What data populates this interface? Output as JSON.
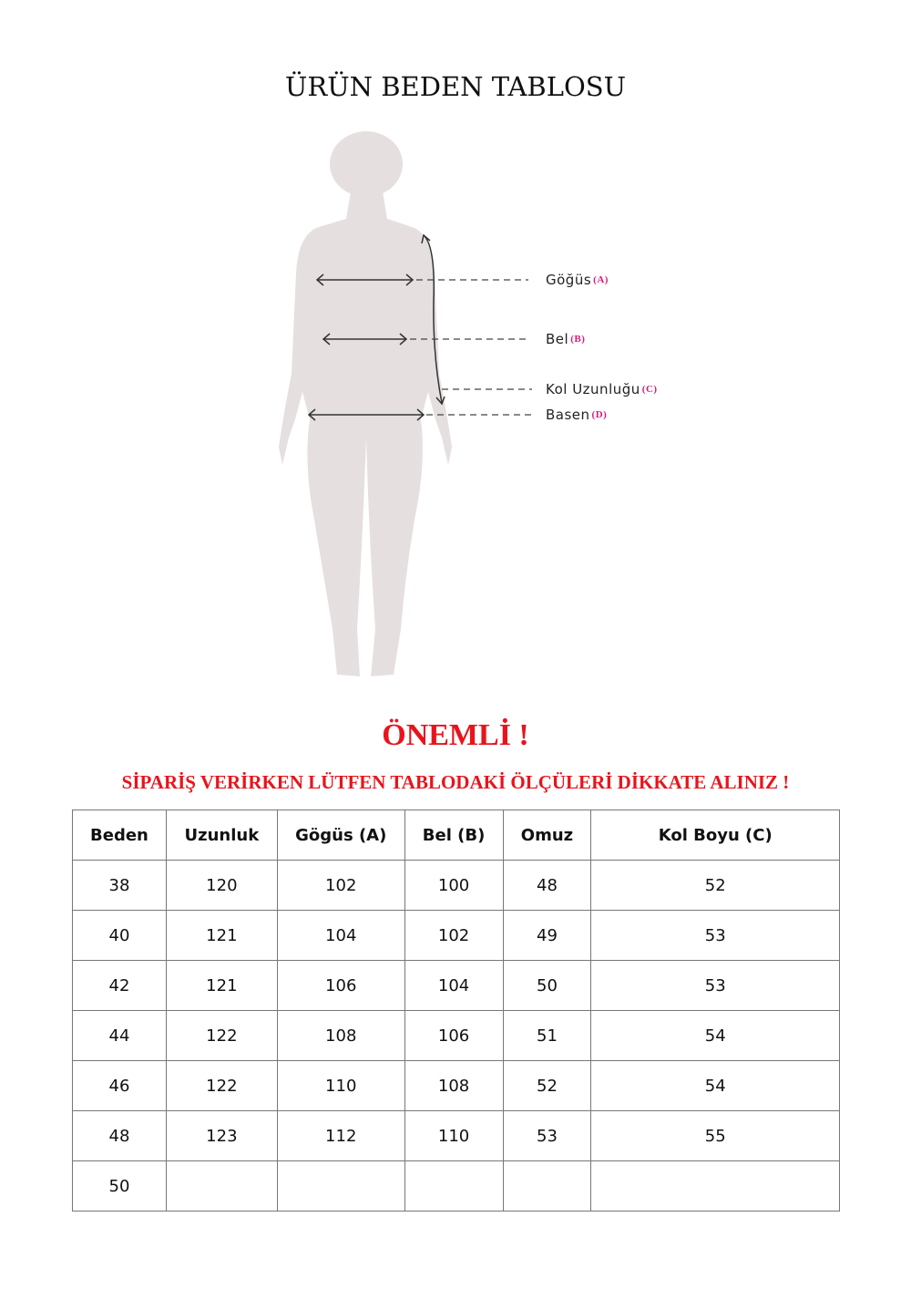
{
  "title": "ÜRÜN BEDEN TABLOSU",
  "figure": {
    "labels": [
      {
        "name": "Göğüs",
        "code": "(A)"
      },
      {
        "name": "Bel",
        "code": "(B)"
      },
      {
        "name": "Kol Uzunluğu",
        "code": "(C)"
      },
      {
        "name": "Basen",
        "code": "(D)"
      }
    ],
    "silhouette_color": "#e6dfdf",
    "code_color": "#d81b7a"
  },
  "important": "ÖNEMLİ !",
  "notice": "SİPARİŞ VERİRKEN LÜTFEN TABLODAKİ ÖLÇÜLERİ DİKKATE ALINIZ !",
  "accent_color": "#e8141c",
  "table": {
    "headers": [
      "Beden",
      "Uzunluk",
      "Gögüs (A)",
      "Bel (B)",
      "Omuz",
      "Kol Boyu (C)"
    ],
    "rows": [
      [
        "38",
        "120",
        "102",
        "100",
        "48",
        "52"
      ],
      [
        "40",
        "121",
        "104",
        "102",
        "49",
        "53"
      ],
      [
        "42",
        "121",
        "106",
        "104",
        "50",
        "53"
      ],
      [
        "44",
        "122",
        "108",
        "106",
        "51",
        "54"
      ],
      [
        "46",
        "122",
        "110",
        "108",
        "52",
        "54"
      ],
      [
        "48",
        "123",
        "112",
        "110",
        "53",
        "55"
      ],
      [
        "50",
        "",
        "",
        "",
        "",
        ""
      ]
    ]
  }
}
